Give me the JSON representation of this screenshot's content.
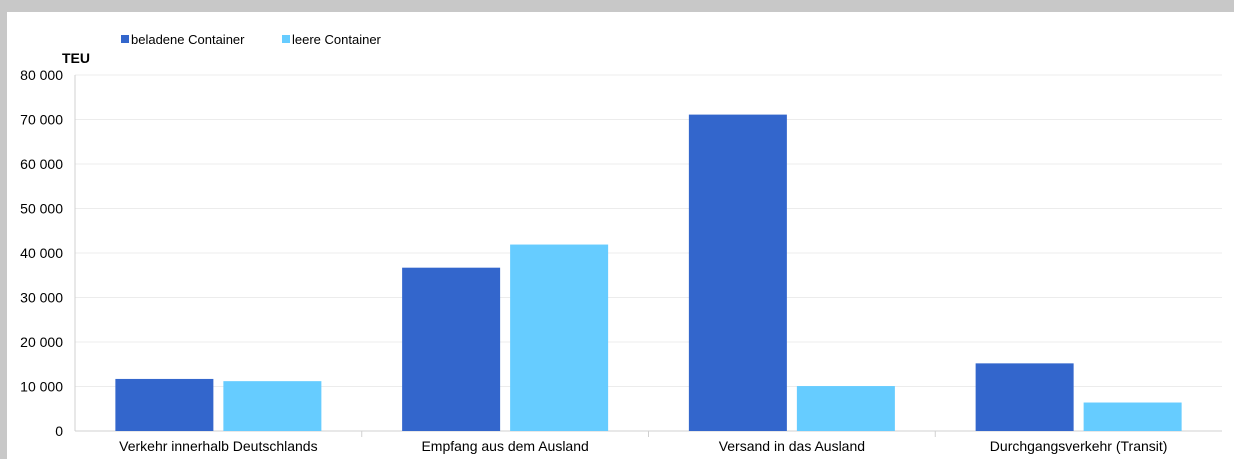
{
  "chart_data": {
    "type": "bar",
    "title": "",
    "ylabel": "TEU",
    "xlabel": "",
    "ylim": [
      0,
      80000
    ],
    "yticks": [
      0,
      10000,
      20000,
      30000,
      40000,
      50000,
      60000,
      70000,
      80000
    ],
    "ytick_labels": [
      "0",
      "10 000",
      "20 000",
      "30 000",
      "40 000",
      "50 000",
      "60 000",
      "70 000",
      "80 000"
    ],
    "grid": true,
    "legend_position": "top-left",
    "categories": [
      "Verkehr innerhalb Deutschlands",
      "Empfang aus dem Ausland",
      "Versand in das Ausland",
      "Durchgangsverkehr (Transit)"
    ],
    "series": [
      {
        "name": "beladene Container",
        "color": "#3366cc",
        "values": [
          11700,
          36700,
          71100,
          15200
        ]
      },
      {
        "name": "leere Container",
        "color": "#66ccff",
        "values": [
          11200,
          41900,
          10100,
          6400
        ]
      }
    ]
  }
}
